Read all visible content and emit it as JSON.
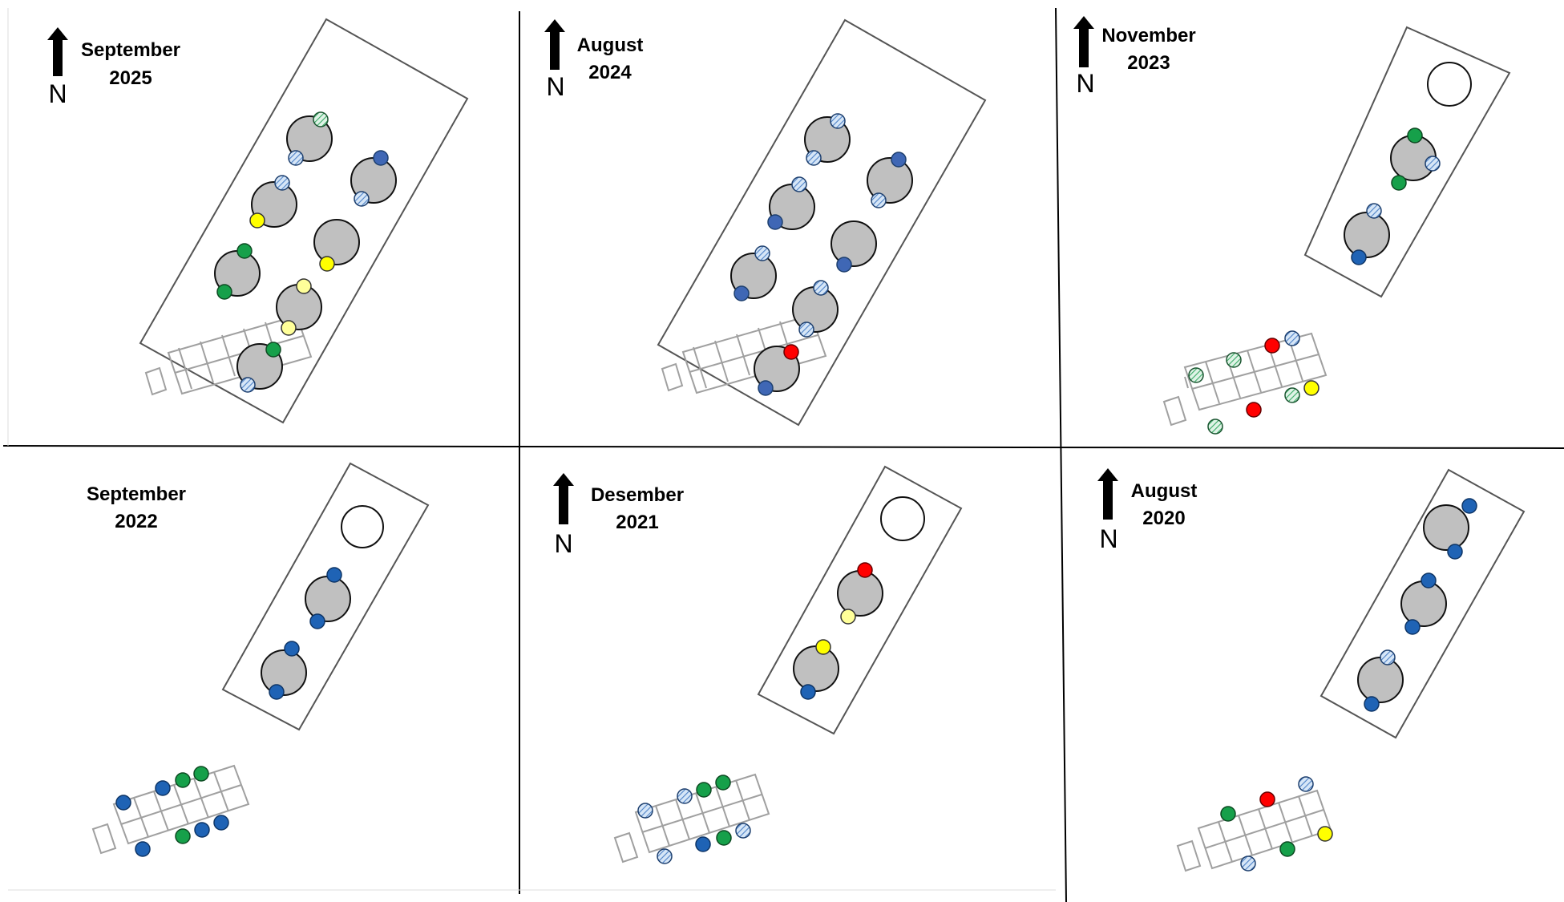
{
  "colors": {
    "background": "#ffffff",
    "divider": "#000000",
    "enclosure_stroke": "#555555",
    "building_stroke": "#a0a0a0",
    "tank_fill": "#c0c0c0",
    "tank_stroke": "#111111",
    "empty_tank_fill": "#ffffff",
    "marker_blue": "#1f63b5",
    "marker_blue_hatched": "#d6e6f7",
    "marker_blue_hatch_line": "#4e82c7",
    "marker_green": "#16a04a",
    "marker_green_hatched": "#dff3e6",
    "marker_green_hatch_line": "#3aaa66",
    "marker_yellow": "#ffff00",
    "marker_yellow_pale": "#ffff99",
    "marker_red": "#ff0000"
  },
  "north_label": "N",
  "panels": [
    {
      "id": "sep-2025",
      "month": "September",
      "year": "2025",
      "has_north_arrow": true,
      "has_pool": false,
      "tanks_in_enclosure": 7,
      "markers": [
        "green-hatched",
        "blue-hatched",
        "blue",
        "blue-hatched",
        "blue-hatched",
        "yellow",
        "yellow",
        "green",
        "green",
        "yellow-pale",
        "yellow-pale",
        "green",
        "blue-hatched"
      ]
    },
    {
      "id": "aug-2024",
      "month": "August",
      "year": "2024",
      "has_north_arrow": true,
      "has_pool": false,
      "tanks_in_enclosure": 7,
      "markers": [
        "blue-hatched",
        "blue-hatched",
        "blue",
        "blue-hatched",
        "blue-hatched",
        "blue",
        "blue",
        "blue-hatched",
        "blue",
        "blue-hatched",
        "blue-hatched",
        "red",
        "blue"
      ]
    },
    {
      "id": "nov-2023",
      "month": "November",
      "year": "2023",
      "has_north_arrow": true,
      "has_pool": true,
      "tanks_in_enclosure": 2,
      "markers": [
        "green",
        "green",
        "blue-hatched",
        "blue-hatched",
        "blue",
        "green-hatched",
        "green-hatched",
        "red",
        "blue-hatched",
        "green-hatched",
        "red",
        "green-hatched",
        "yellow"
      ]
    },
    {
      "id": "sep-2022",
      "month": "September",
      "year": "2022",
      "has_north_arrow": false,
      "has_pool": true,
      "tanks_in_enclosure": 2,
      "markers": [
        "blue",
        "blue",
        "blue",
        "blue",
        "blue",
        "blue",
        "green",
        "green",
        "blue",
        "green",
        "blue",
        "blue"
      ]
    },
    {
      "id": "dec-2021",
      "month": "Desember",
      "year": "2021",
      "has_north_arrow": true,
      "has_pool": true,
      "tanks_in_enclosure": 2,
      "markers": [
        "red",
        "yellow-pale",
        "yellow",
        "blue",
        "blue-hatched",
        "blue-hatched",
        "green",
        "green",
        "blue-hatched",
        "blue",
        "green",
        "blue-hatched"
      ]
    },
    {
      "id": "aug-2020",
      "month": "August",
      "year": "2020",
      "has_north_arrow": true,
      "has_pool": false,
      "tanks_in_enclosure": 3,
      "markers": [
        "blue",
        "blue",
        "blue",
        "blue",
        "blue-hatched",
        "blue",
        "green",
        "red",
        "blue-hatched",
        "blue-hatched",
        "green",
        "yellow"
      ]
    }
  ]
}
